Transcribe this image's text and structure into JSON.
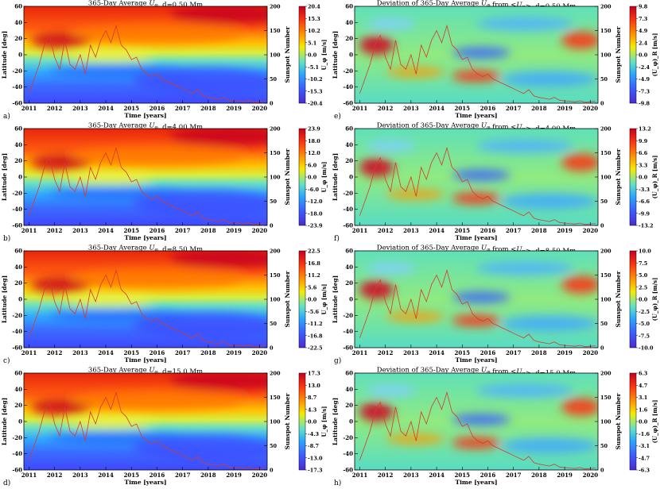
{
  "figure": {
    "x_axis_label": "Time [years]",
    "y_axis_label": "Latitude [deg]",
    "right_axis_label": "Sunspot Number",
    "x_ticks": [
      "2011",
      "2012",
      "2013",
      "2014",
      "2015",
      "2016",
      "2017",
      "2018",
      "2019",
      "2020"
    ],
    "y_ticks": [
      "60",
      "40",
      "20",
      "0",
      "-20",
      "-40",
      "-60"
    ],
    "sunspot_ticks": [
      "200",
      "150",
      "100",
      "50",
      "0"
    ],
    "colors": {
      "sunspot_line": "#d83a2a"
    }
  },
  "chart_data": [
    {
      "panel": "a)",
      "type": "heatmap",
      "title": "365-Day Average U_φ, d=0.50 Mm",
      "colorbar_label": "U_φ [m/s]",
      "colorbar_ticks": [
        "20.4",
        "15.3",
        "10.2",
        "5.1",
        "0.0",
        "-5.1",
        "-10.2",
        "-15.3",
        "-20.4"
      ],
      "xlim": [
        2010.8,
        2020.3
      ],
      "ylim": [
        -60,
        60
      ],
      "y2lim": [
        0,
        200
      ]
    },
    {
      "panel": "b)",
      "type": "heatmap",
      "title": "365-Day Average U_φ, d=4.00 Mm",
      "colorbar_label": "U_φ [m/s]",
      "colorbar_ticks": [
        "23.9",
        "18.0",
        "12.0",
        "6.0",
        "0.0",
        "-6.0",
        "-12.0",
        "-18.0",
        "-23.9"
      ],
      "xlim": [
        2010.8,
        2020.3
      ],
      "ylim": [
        -60,
        60
      ],
      "y2lim": [
        0,
        200
      ]
    },
    {
      "panel": "c)",
      "type": "heatmap",
      "title": "365-Day Average U_φ, d=8.50 Mm",
      "colorbar_label": "U_φ [m/s]",
      "colorbar_ticks": [
        "22.5",
        "16.8",
        "11.2",
        "5.6",
        "0.0",
        "-5.6",
        "-11.2",
        "-16.8",
        "-22.5"
      ],
      "xlim": [
        2010.8,
        2020.3
      ],
      "ylim": [
        -60,
        60
      ],
      "y2lim": [
        0,
        200
      ]
    },
    {
      "panel": "d)",
      "type": "heatmap",
      "title": "365-Day Average U_φ, d=15.0 Mm",
      "colorbar_label": "U_φ [m/s]",
      "colorbar_ticks": [
        "17.3",
        "13.0",
        "8.7",
        "4.3",
        "0.0",
        "-4.3",
        "-8.7",
        "-13.0",
        "-17.3"
      ],
      "xlim": [
        2010.8,
        2020.3
      ],
      "ylim": [
        -60,
        60
      ],
      "y2lim": [
        0,
        200
      ]
    },
    {
      "panel": "e)",
      "type": "heatmap",
      "title": "Deviation of 365-Day Average U_φ from <U_φ>, d=0.50 Mm",
      "colorbar_label": "(U_φ)_R [m/s]",
      "colorbar_ticks": [
        "9.8",
        "7.3",
        "4.9",
        "2.4",
        "0.0",
        "-2.4",
        "-4.9",
        "-7.3",
        "-9.8"
      ],
      "xlim": [
        2010.8,
        2020.3
      ],
      "ylim": [
        -60,
        60
      ],
      "y2lim": [
        0,
        200
      ]
    },
    {
      "panel": "f)",
      "type": "heatmap",
      "title": "Deviation of 365-Day Average U_φ from <U_φ>, d=4.00 Mm",
      "colorbar_label": "(U_φ)_R [m/s]",
      "colorbar_ticks": [
        "13.2",
        "9.9",
        "6.6",
        "3.3",
        "0.0",
        "-3.3",
        "-6.6",
        "-9.9",
        "-13.2"
      ],
      "xlim": [
        2010.8,
        2020.3
      ],
      "ylim": [
        -60,
        60
      ],
      "y2lim": [
        0,
        200
      ]
    },
    {
      "panel": "g)",
      "type": "heatmap",
      "title": "Deviation of 365-Day Average U_φ from <U_φ>, d=8.50 Mm",
      "colorbar_label": "(U_φ)_R [m/s]",
      "colorbar_ticks": [
        "10.0",
        "7.5",
        "5.0",
        "2.5",
        "0.0",
        "-2.5",
        "-5.0",
        "-7.5",
        "-10.0"
      ],
      "xlim": [
        2010.8,
        2020.3
      ],
      "ylim": [
        -60,
        60
      ],
      "y2lim": [
        0,
        200
      ]
    },
    {
      "panel": "h)",
      "type": "heatmap",
      "title": "Deviation of 365-Day Average U_φ from <U_φ>, d=15.0 Mm",
      "colorbar_label": "(U_φ)_R [m/s]",
      "colorbar_ticks": [
        "6.3",
        "4.7",
        "3.1",
        "1.6",
        "0.0",
        "-1.6",
        "-3.1",
        "-4.7",
        "-6.3"
      ],
      "xlim": [
        2010.8,
        2020.3
      ],
      "ylim": [
        -60,
        60
      ],
      "y2lim": [
        0,
        200
      ]
    }
  ],
  "sunspot_series": {
    "x": [
      2011.0,
      2011.2,
      2011.4,
      2011.6,
      2011.8,
      2012.0,
      2012.2,
      2012.4,
      2012.6,
      2012.8,
      2013.0,
      2013.2,
      2013.4,
      2013.6,
      2013.8,
      2014.0,
      2014.2,
      2014.4,
      2014.6,
      2014.8,
      2015.0,
      2015.2,
      2015.4,
      2015.6,
      2015.8,
      2016.0,
      2016.2,
      2016.4,
      2016.6,
      2016.8,
      2017.0,
      2017.2,
      2017.4,
      2017.6,
      2017.8,
      2018.0,
      2018.2,
      2018.4,
      2018.6,
      2018.8,
      2019.0,
      2019.2,
      2019.4,
      2019.6,
      2019.8,
      2020.0,
      2020.2
    ],
    "values": [
      20,
      50,
      80,
      120,
      140,
      95,
      70,
      130,
      80,
      70,
      100,
      60,
      120,
      95,
      130,
      150,
      125,
      160,
      120,
      110,
      90,
      95,
      70,
      60,
      55,
      60,
      50,
      45,
      40,
      35,
      30,
      25,
      20,
      28,
      15,
      12,
      10,
      8,
      12,
      6,
      5,
      4,
      3,
      5,
      2,
      3,
      4
    ]
  }
}
